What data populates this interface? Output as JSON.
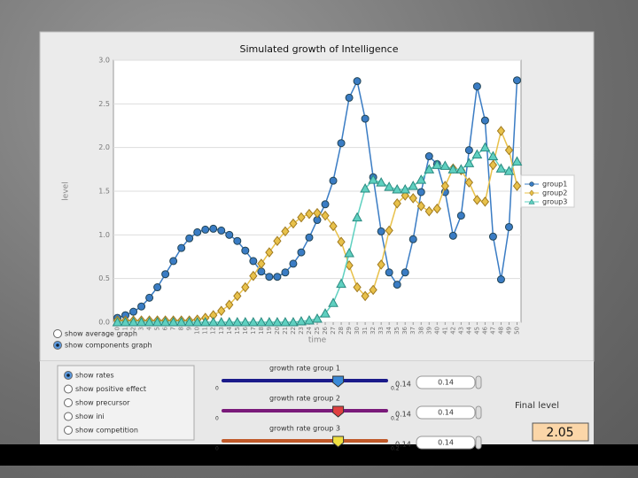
{
  "chart_data": {
    "type": "line",
    "title": "Simulated growth of Intelligence",
    "x_label": "time",
    "y_label": "level",
    "x": [
      0,
      1,
      2,
      3,
      4,
      5,
      6,
      7,
      8,
      9,
      10,
      11,
      12,
      13,
      14,
      15,
      16,
      17,
      18,
      19,
      20,
      21,
      22,
      23,
      24,
      25,
      26,
      27,
      28,
      29,
      30,
      31,
      32,
      33,
      34,
      35,
      36,
      37,
      38,
      39,
      40,
      41,
      42,
      43,
      44,
      45,
      46,
      47,
      48,
      49,
      50
    ],
    "xlim": [
      -0.5,
      50.5
    ],
    "xticks": [
      0,
      1,
      2,
      3,
      4,
      5,
      6,
      7,
      8,
      9,
      10,
      11,
      12,
      13,
      14,
      15,
      16,
      17,
      18,
      19,
      20,
      21,
      22,
      23,
      24,
      25,
      26,
      27,
      28,
      29,
      30,
      31,
      32,
      33,
      34,
      35,
      36,
      37,
      38,
      39,
      40,
      41,
      42,
      43,
      44,
      45,
      46,
      47,
      48,
      49,
      50
    ],
    "ylim": [
      0,
      3
    ],
    "yticks": [
      {
        "value": 0,
        "label": "0.0"
      },
      0.5,
      {
        "value": 1,
        "label": "1.0"
      },
      1.5,
      {
        "value": 2,
        "label": "2.0"
      },
      2.5,
      {
        "value": 3,
        "label": "3.0"
      }
    ],
    "grid": true,
    "legend": "right",
    "series": [
      {
        "name": "group1",
        "color": "#3a7cc4",
        "marker": "circle",
        "values": [
          0.05,
          0.08,
          0.12,
          0.18,
          0.28,
          0.4,
          0.55,
          0.7,
          0.85,
          0.96,
          1.03,
          1.06,
          1.07,
          1.05,
          1.0,
          0.93,
          0.82,
          0.7,
          0.58,
          0.52,
          0.52,
          0.57,
          0.67,
          0.8,
          0.97,
          1.17,
          1.35,
          1.62,
          2.05,
          2.57,
          2.76,
          2.33,
          1.66,
          1.04,
          0.57,
          0.43,
          0.57,
          0.95,
          1.49,
          1.9,
          1.81,
          1.49,
          0.99,
          1.22,
          1.97,
          2.7,
          2.31,
          0.98,
          0.49,
          1.09,
          2.77
        ]
      },
      {
        "name": "group2",
        "color": "#e8c14a",
        "marker": "diamond",
        "values": [
          0.02,
          0.02,
          0.02,
          0.02,
          0.02,
          0.02,
          0.02,
          0.02,
          0.02,
          0.02,
          0.03,
          0.05,
          0.08,
          0.13,
          0.2,
          0.3,
          0.4,
          0.53,
          0.67,
          0.8,
          0.93,
          1.04,
          1.13,
          1.2,
          1.24,
          1.25,
          1.22,
          1.1,
          0.92,
          0.65,
          0.4,
          0.3,
          0.37,
          0.66,
          1.05,
          1.36,
          1.45,
          1.42,
          1.33,
          1.27,
          1.3,
          1.56,
          1.76,
          1.74,
          1.6,
          1.4,
          1.38,
          1.8,
          2.19,
          1.97,
          1.56
        ]
      },
      {
        "name": "group3",
        "color": "#5fd0c0",
        "marker": "triangle",
        "values": [
          0,
          0,
          0,
          0,
          0,
          0,
          0,
          0,
          0,
          0,
          0,
          0,
          0,
          0,
          0,
          0,
          0,
          0,
          0,
          0,
          0,
          0,
          0,
          0.01,
          0.02,
          0.04,
          0.1,
          0.22,
          0.44,
          0.79,
          1.2,
          1.53,
          1.63,
          1.6,
          1.55,
          1.52,
          1.52,
          1.56,
          1.63,
          1.75,
          1.8,
          1.79,
          1.75,
          1.75,
          1.82,
          1.92,
          2.0,
          1.9,
          1.76,
          1.73,
          1.84
        ]
      }
    ]
  },
  "graph_options": [
    {
      "label": "show average graph",
      "selected": false
    },
    {
      "label": "show components graph",
      "selected": true
    }
  ],
  "view_options": [
    {
      "label": "show rates",
      "selected": true
    },
    {
      "label": "show positive effect",
      "selected": false
    },
    {
      "label": "show precursor",
      "selected": false
    },
    {
      "label": "show ini",
      "selected": false
    },
    {
      "label": "show competition",
      "selected": false
    }
  ],
  "sliders": [
    {
      "label": "growth rate group 1",
      "value": 0.14,
      "min": 0,
      "max": 0.2,
      "max_label": "0.2",
      "field": "0.14",
      "color": "#1a1a8a",
      "thumb": "#3a8ad8"
    },
    {
      "label": "growth rate group 2",
      "value": 0.14,
      "min": 0,
      "max": 0.2,
      "max_label": "0.2",
      "field": "0.14",
      "color": "#7a1a7a",
      "thumb": "#e04040"
    },
    {
      "label": "growth rate group 3",
      "value": 0.14,
      "min": 0,
      "max": 0.2,
      "max_label": "0.2",
      "field": "0.14",
      "color": "#c05a2a",
      "thumb": "#f0e040"
    }
  ],
  "final_level": {
    "label": "Final level",
    "value": "2.05"
  }
}
